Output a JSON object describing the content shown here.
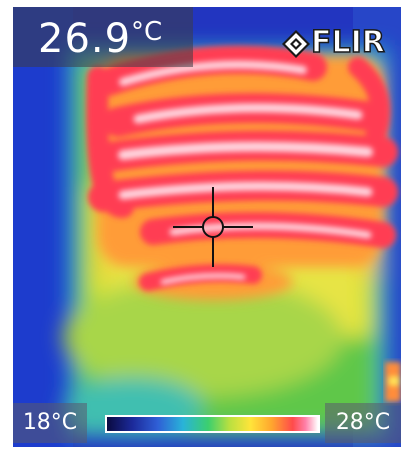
{
  "camera": {
    "brand": "FLIR",
    "reading": {
      "value": "26.9",
      "unit": "°C"
    },
    "scale": {
      "min_label": "18°C",
      "max_label": "28°C"
    }
  },
  "icons": {
    "logo_mark": "flir-diamond-icon",
    "spot_meter": "crosshair-icon"
  },
  "palette": {
    "cold": "#2033b8",
    "cool": "#29b3d8",
    "warm": "#ffe43a",
    "hot": "#ff4b4b",
    "hottest": "#ffd7e0"
  }
}
